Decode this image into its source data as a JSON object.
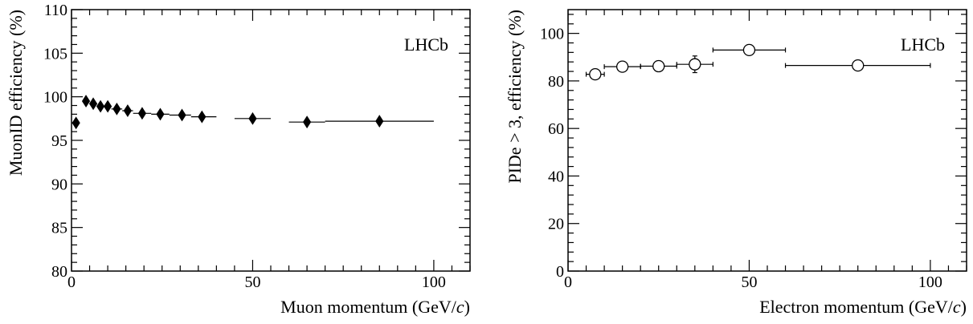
{
  "chart_data": [
    {
      "type": "scatter",
      "panel": "left",
      "tag": "LHCb",
      "xlabel": "Muon momentum (GeV/c)",
      "ylabel": "MuonID efficiency (%)",
      "xlim": [
        0,
        110
      ],
      "ylim": [
        80,
        110
      ],
      "x_ticks": [
        0,
        50,
        100
      ],
      "y_ticks": [
        80,
        85,
        90,
        95,
        100,
        105,
        110
      ],
      "marker": "filled-diamond",
      "grid": false,
      "points": [
        {
          "x": 1.25,
          "y": 97.0,
          "xlo": 0.5,
          "xhi": 2.0
        },
        {
          "x": 4.0,
          "y": 99.5,
          "xlo": 3.0,
          "xhi": 5.0
        },
        {
          "x": 6.0,
          "y": 99.2,
          "xlo": 5.0,
          "xhi": 7.0
        },
        {
          "x": 8.0,
          "y": 98.9,
          "xlo": 7.0,
          "xhi": 9.0
        },
        {
          "x": 10.0,
          "y": 98.9,
          "xlo": 9.0,
          "xhi": 11.0
        },
        {
          "x": 12.5,
          "y": 98.6,
          "xlo": 11.0,
          "xhi": 14.0
        },
        {
          "x": 15.5,
          "y": 98.4,
          "xlo": 14.0,
          "xhi": 17.0
        },
        {
          "x": 19.5,
          "y": 98.1,
          "xlo": 17.0,
          "xhi": 22.0
        },
        {
          "x": 24.5,
          "y": 98.0,
          "xlo": 22.0,
          "xhi": 27.0
        },
        {
          "x": 30.5,
          "y": 97.9,
          "xlo": 27.0,
          "xhi": 33.0
        },
        {
          "x": 36.0,
          "y": 97.7,
          "xlo": 33.0,
          "xhi": 40.0
        },
        {
          "x": 50.0,
          "y": 97.5,
          "xlo": 45.0,
          "xhi": 55.0
        },
        {
          "x": 65.0,
          "y": 97.1,
          "xlo": 60.0,
          "xhi": 70.0
        },
        {
          "x": 85.0,
          "y": 97.2,
          "xlo": 70.0,
          "xhi": 100.0
        }
      ]
    },
    {
      "type": "scatter",
      "panel": "right",
      "tag": "LHCb",
      "xlabel": "Electron momentum (GeV/c)",
      "ylabel": "PIDe > 3, efficiency (%)",
      "xlim": [
        0,
        110
      ],
      "ylim": [
        0,
        110
      ],
      "x_ticks": [
        0,
        50,
        100
      ],
      "y_ticks": [
        0,
        20,
        40,
        60,
        80,
        100
      ],
      "marker": "open-circle",
      "grid": false,
      "points": [
        {
          "x": 7.5,
          "y": 82.8,
          "xlo": 5.0,
          "xhi": 10.0,
          "ylo": 81.5,
          "yhi": 84.0
        },
        {
          "x": 15.0,
          "y": 86.0,
          "xlo": 10.0,
          "xhi": 20.0,
          "ylo": 85.0,
          "yhi": 87.0
        },
        {
          "x": 25.0,
          "y": 86.2,
          "xlo": 20.0,
          "xhi": 30.0,
          "ylo": 85.0,
          "yhi": 87.4
        },
        {
          "x": 35.0,
          "y": 87.0,
          "xlo": 30.0,
          "xhi": 40.0,
          "ylo": 83.5,
          "yhi": 90.5
        },
        {
          "x": 50.0,
          "y": 93.0,
          "xlo": 40.0,
          "xhi": 60.0,
          "ylo": 92.0,
          "yhi": 94.0
        },
        {
          "x": 80.0,
          "y": 86.5,
          "xlo": 60.0,
          "xhi": 100.0,
          "ylo": 85.8,
          "yhi": 87.2
        }
      ]
    }
  ]
}
